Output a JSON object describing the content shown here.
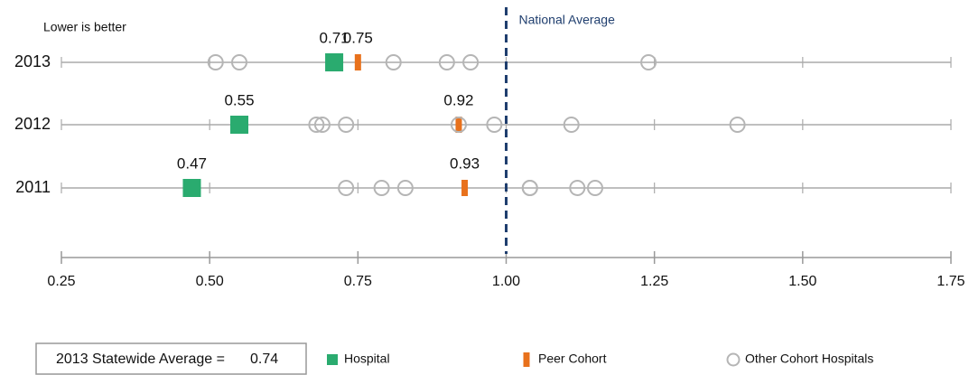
{
  "chart_data": {
    "type": "dotplot",
    "note": "Lower is better",
    "categories": [
      "2013",
      "2012",
      "2011"
    ],
    "series": [
      {
        "name": "Hospital",
        "color": "#2aab6f",
        "marker": "square",
        "show_labels": true,
        "values": [
          0.71,
          0.55,
          0.47
        ]
      },
      {
        "name": "Peer Cohort",
        "color": "#e8711c",
        "marker": "bar",
        "show_labels": true,
        "values": [
          0.75,
          0.92,
          0.93
        ]
      },
      {
        "name": "Other Cohort Hospitals",
        "color": "#b5b5b5",
        "marker": "circle",
        "show_labels": false,
        "values": [
          [
            0.51,
            0.55,
            0.81,
            0.9,
            0.94,
            1.24
          ],
          [
            0.68,
            0.69,
            0.73,
            0.92,
            0.98,
            1.11,
            1.39
          ],
          [
            0.73,
            0.79,
            0.83,
            1.04,
            1.04,
            1.12,
            1.15
          ]
        ]
      }
    ],
    "xlim": [
      0.25,
      1.75
    ],
    "xticks": [
      0.25,
      {
        "value": 0.5,
        "label": "0.50"
      },
      0.75,
      {
        "value": 1.0,
        "label": "1.00"
      },
      1.25,
      {
        "value": 1.5,
        "label": "1.50"
      },
      1.75
    ],
    "reference_line": {
      "value": 1.0,
      "label": "National Average",
      "color": "#1f3e6e"
    },
    "statewide_average_label": "2013 Statewide Average =",
    "statewide_average": 0.74
  }
}
